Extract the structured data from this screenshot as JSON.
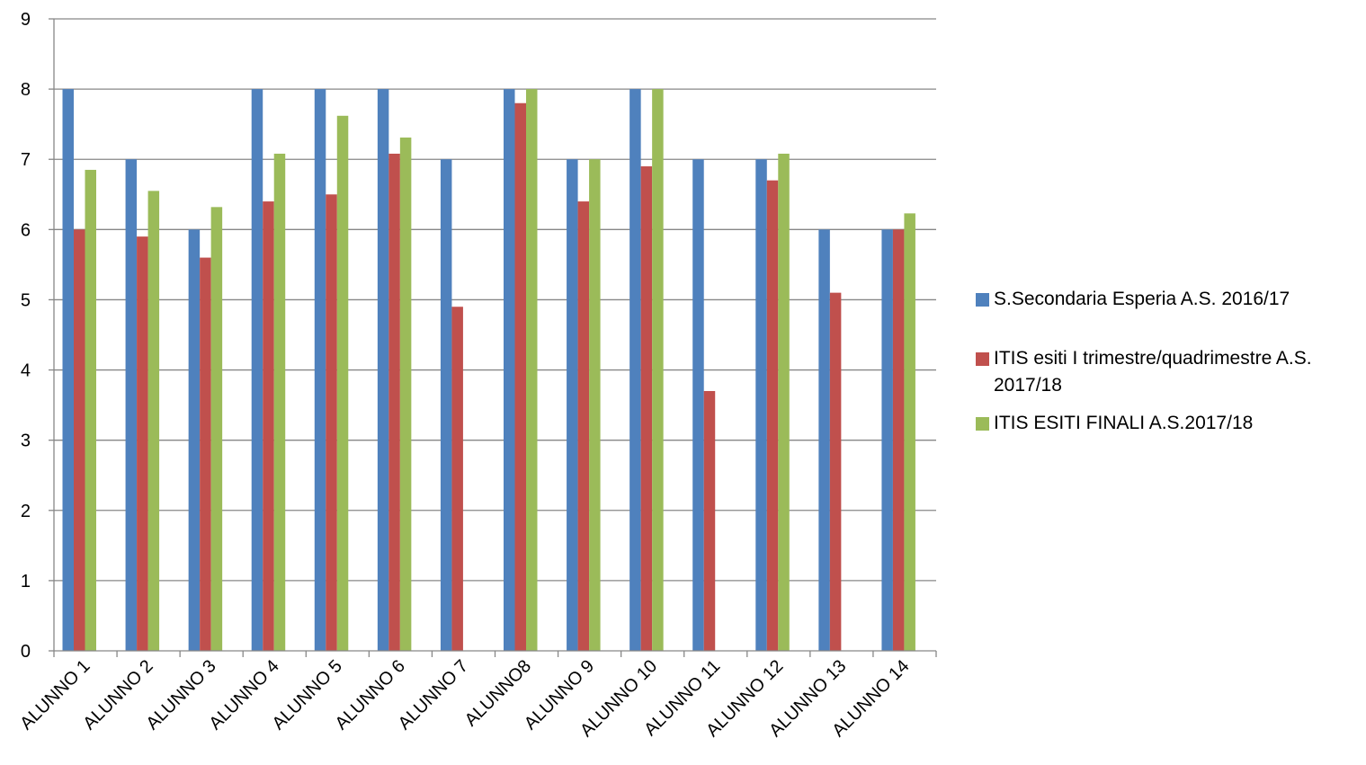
{
  "chart_data": {
    "type": "bar",
    "categories": [
      "ALUNNO 1",
      "ALUNNO 2",
      "ALUNNO 3",
      "ALUNNO 4",
      "ALUNNO 5",
      "ALUNNO 6",
      "ALUNNO 7",
      "ALUNNO8",
      "ALUNNO 9",
      "ALUNNO 10",
      "ALUNNO 11",
      "ALUNNO 12",
      "ALUNNO 13",
      "ALUNNO 14"
    ],
    "series": [
      {
        "name": "S.Secondaria Esperia A.S. 2016/17",
        "color": "#4F81BD",
        "values": [
          8,
          7,
          6,
          8,
          8,
          8,
          7,
          8,
          7,
          8,
          7,
          7,
          6,
          6
        ]
      },
      {
        "name": "ITIS esiti I trimestre/quadrimestre A.S. 2017/18",
        "color": "#C0504D",
        "values": [
          6,
          5.9,
          5.6,
          6.4,
          6.5,
          7.08,
          4.9,
          7.8,
          6.4,
          6.9,
          3.7,
          6.7,
          5.1,
          6
        ]
      },
      {
        "name": "ITIS ESITI FINALI A.S.2017/18",
        "color": "#9BBB59",
        "values": [
          6.85,
          6.55,
          6.32,
          7.08,
          7.62,
          7.31,
          0,
          8,
          7,
          8,
          0,
          7.08,
          0,
          6.23
        ]
      }
    ],
    "ylim": [
      0,
      9
    ],
    "yticks": [
      "0",
      "1",
      "2",
      "3",
      "4",
      "5",
      "6",
      "7",
      "8",
      "9"
    ],
    "grid": true,
    "legend_position": "right",
    "title": "",
    "xlabel": "",
    "ylabel": ""
  }
}
